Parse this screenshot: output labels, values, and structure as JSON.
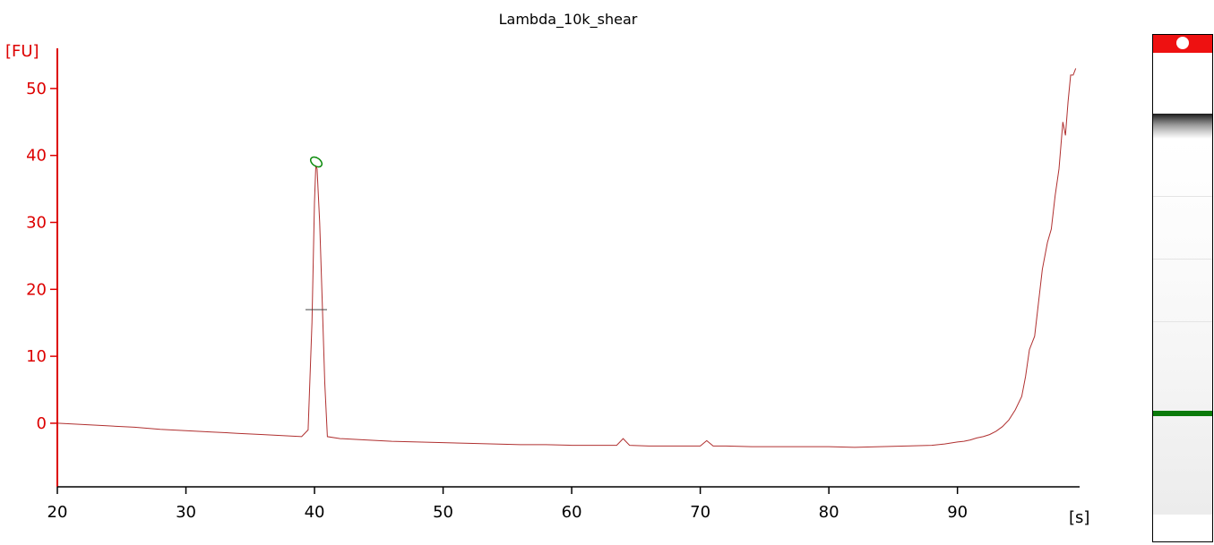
{
  "chart_data": {
    "type": "line",
    "title": "Lambda_10k_shear",
    "ylabel": "[FU]",
    "xlabel": "[s]",
    "xlim": [
      20,
      99.5
    ],
    "ylim": [
      -9.5,
      56
    ],
    "x_ticks": [
      20,
      30,
      40,
      50,
      60,
      70,
      80,
      90
    ],
    "y_ticks": [
      0,
      10,
      20,
      30,
      40,
      50
    ],
    "axis_color": "#dd0000",
    "line_color": "#b03030",
    "series": [
      {
        "values_x": [
          20,
          22,
          24,
          26,
          28,
          30,
          32,
          34,
          36,
          38,
          39,
          39.5,
          39.8,
          40,
          40.1,
          40.2,
          40.4,
          40.6,
          40.8,
          41,
          42,
          44,
          46,
          48,
          50,
          52,
          54,
          56,
          58,
          60,
          62,
          63.5,
          64,
          64.5,
          66,
          68,
          70,
          70.5,
          71,
          72,
          74,
          76,
          78,
          80,
          82,
          84,
          86,
          88,
          89,
          90,
          90.5,
          91,
          91.5,
          92,
          92.5,
          93,
          93.5,
          94,
          94.5,
          95,
          95.3,
          95.6,
          96,
          96.3,
          96.6,
          97,
          97.3,
          97.6,
          97.9,
          98.2,
          98.4,
          98.6,
          98.8,
          99,
          99.2
        ],
        "values_y": [
          0,
          -0.2,
          -0.4,
          -0.6,
          -0.9,
          -1.1,
          -1.3,
          -1.5,
          -1.7,
          -1.9,
          -2,
          -1,
          15,
          33,
          38.5,
          38,
          30,
          18,
          6,
          -2,
          -2.3,
          -2.5,
          -2.7,
          -2.8,
          -2.9,
          -3,
          -3.1,
          -3.2,
          -3.2,
          -3.3,
          -3.3,
          -3.3,
          -2.3,
          -3.3,
          -3.4,
          -3.4,
          -3.4,
          -2.6,
          -3.4,
          -3.4,
          -3.5,
          -3.5,
          -3.5,
          -3.5,
          -3.6,
          -3.5,
          -3.4,
          -3.3,
          -3.1,
          -2.8,
          -2.7,
          -2.5,
          -2.2,
          -2,
          -1.7,
          -1.2,
          -0.5,
          0.5,
          2,
          4,
          7,
          11,
          13,
          18,
          23,
          27,
          29,
          34,
          38,
          45,
          43,
          48,
          52,
          52,
          53
        ]
      }
    ],
    "peak_annotation": "O",
    "gel": {
      "top_color": "#ee1111",
      "marker_color": "#0a7a0a"
    }
  }
}
